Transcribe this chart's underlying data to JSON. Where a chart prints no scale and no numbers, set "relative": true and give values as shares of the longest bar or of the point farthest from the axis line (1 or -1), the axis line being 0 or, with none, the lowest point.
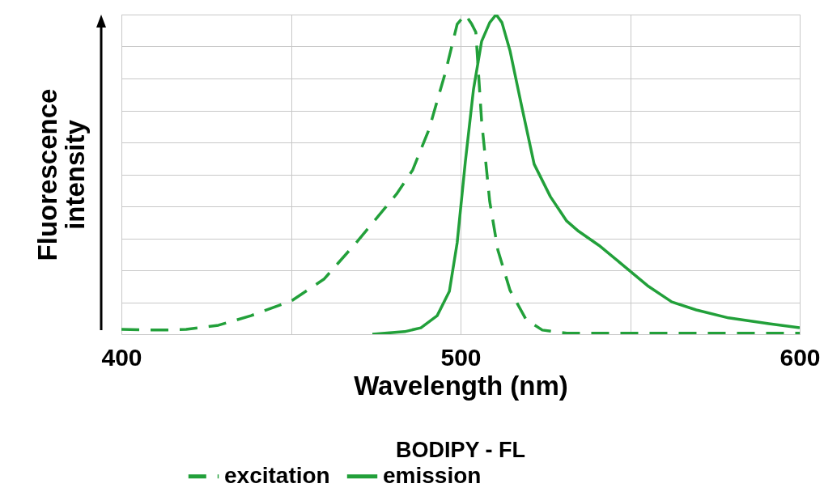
{
  "chart_data": {
    "type": "line",
    "title": "BODIPY - FL",
    "xlabel": "Wavelength (nm)",
    "ylabel": "Fluorescence intensity",
    "relative": true,
    "xlim": [
      400,
      600
    ],
    "xticks": [
      400,
      {
        "value": 450,
        "label": null
      },
      500,
      {
        "value": 550,
        "label": null
      },
      600
    ],
    "grid": true,
    "legend": "bottom",
    "series": [
      {
        "name": "excitation",
        "color": "#22a03a",
        "line_style": "dashed",
        "x": [
          400,
          411.9,
          419.1,
          428.6,
          438.2,
          450.1,
          459.7,
          469.2,
          481.1,
          485.9,
          490.7,
          495.5,
          499.0,
          501.4,
          503.3,
          504.5,
          506.2,
          508.6,
          511.0,
          514.6,
          519.3,
          524.1,
          531.3,
          600
        ],
        "values": [
          0.015,
          0.013,
          0.015,
          0.028,
          0.058,
          0.104,
          0.172,
          0.286,
          0.438,
          0.514,
          0.641,
          0.818,
          0.97,
          1.0,
          0.97,
          0.945,
          0.668,
          0.415,
          0.263,
          0.137,
          0.046,
          0.013,
          0.003,
          0.003
        ]
      },
      {
        "name": "emission",
        "color": "#22a03a",
        "line_style": "solid",
        "x": [
          474.0,
          483.5,
          488.3,
          493.1,
          496.7,
          499.0,
          501.4,
          503.8,
          506.2,
          508.6,
          510.5,
          512.2,
          514.6,
          518.1,
          521.7,
          526.5,
          531.3,
          534.8,
          540.8,
          548.0,
          555.1,
          562.3,
          569.5,
          579.0,
          590.9,
          600
        ],
        "values": [
          0,
          0.008,
          0.02,
          0.058,
          0.134,
          0.286,
          0.539,
          0.765,
          0.916,
          0.975,
          1.0,
          0.975,
          0.886,
          0.709,
          0.532,
          0.43,
          0.354,
          0.322,
          0.278,
          0.215,
          0.152,
          0.101,
          0.076,
          0.051,
          0.033,
          0.02
        ]
      }
    ]
  }
}
